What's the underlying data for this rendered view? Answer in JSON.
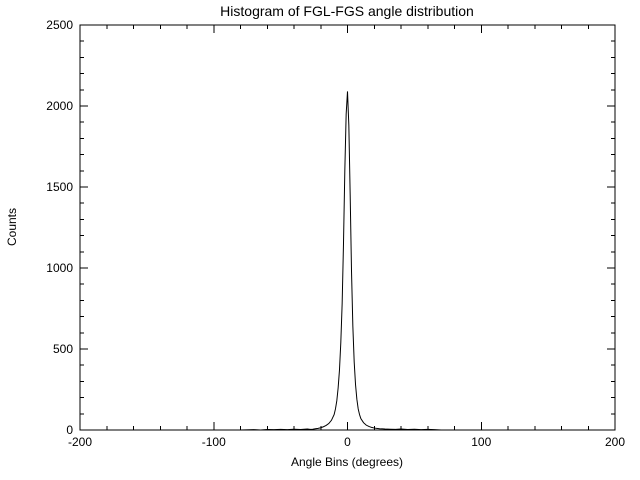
{
  "figure": {
    "background": "#ffffff",
    "foreground": "#000000"
  },
  "chart_data": {
    "type": "line",
    "title": "Histogram of FGL-FGS angle distribution",
    "xlabel": "Angle Bins (degrees)",
    "ylabel": "Counts",
    "xlim": [
      -200,
      200
    ],
    "ylim": [
      0,
      2500
    ],
    "x_ticks": [
      -200,
      -100,
      0,
      100,
      200
    ],
    "x_tick_labels": [
      "-200",
      "-100",
      "0",
      "100",
      "200"
    ],
    "y_ticks": [
      0,
      500,
      1000,
      1500,
      2000,
      2500
    ],
    "y_tick_labels": [
      "0",
      "500",
      "1000",
      "1500",
      "2000",
      "2500"
    ],
    "x_minor_step": 20,
    "y_minor_step": 100,
    "grid": "off",
    "legend": "none",
    "line_color": "#000000",
    "axis_color": "#000000",
    "peak": {
      "x": 0,
      "y": 2090
    },
    "x": [
      -200,
      -180,
      -160,
      -140,
      -120,
      -100,
      -90,
      -80,
      -70,
      -65,
      -60,
      -55,
      -50,
      -45,
      -40,
      -35,
      -30,
      -28,
      -26,
      -24,
      -22,
      -20,
      -18,
      -16,
      -14,
      -12,
      -10,
      -9,
      -8,
      -7,
      -6,
      -5,
      -4,
      -3,
      -2,
      -1,
      0,
      1,
      2,
      3,
      4,
      5,
      6,
      7,
      8,
      9,
      10,
      12,
      14,
      16,
      18,
      20,
      24,
      28,
      32,
      36,
      40,
      45,
      50,
      55,
      60,
      65,
      70,
      80,
      90,
      100,
      120,
      140,
      160,
      180,
      200
    ],
    "y": [
      0,
      0,
      0,
      0,
      0,
      0,
      0,
      0,
      2,
      0,
      3,
      2,
      4,
      2,
      5,
      3,
      6,
      4,
      5,
      8,
      10,
      14,
      20,
      28,
      40,
      60,
      95,
      130,
      180,
      260,
      370,
      540,
      780,
      1150,
      1600,
      1950,
      2090,
      1880,
      1450,
      980,
      640,
      420,
      280,
      190,
      130,
      95,
      70,
      45,
      30,
      22,
      16,
      12,
      8,
      6,
      5,
      4,
      6,
      3,
      5,
      2,
      4,
      2,
      0,
      0,
      0,
      0,
      0,
      0,
      0,
      0,
      0
    ]
  }
}
